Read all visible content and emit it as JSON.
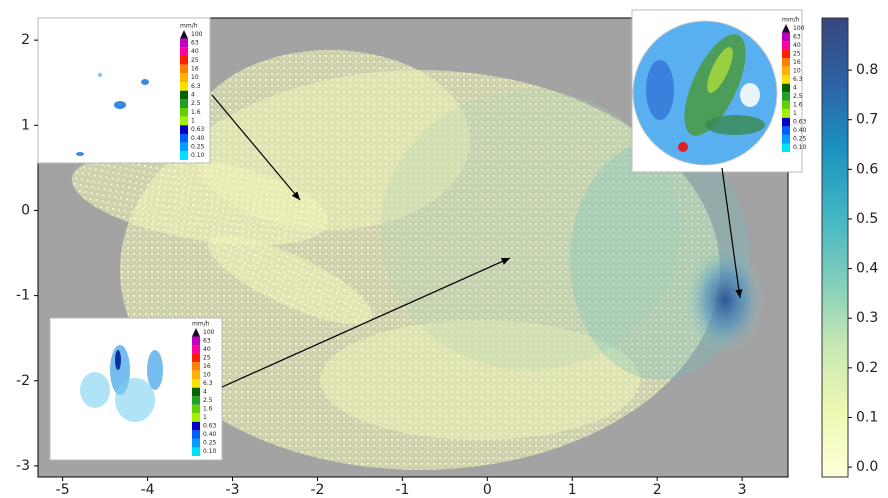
{
  "chart_data": {
    "type": "scatter",
    "xlim": [
      -5.29,
      3.54
    ],
    "ylim": [
      -3.13,
      2.26
    ],
    "xticks": [
      -5,
      -4,
      -3,
      -2,
      -1,
      0,
      1,
      2,
      3
    ],
    "yticks": [
      -3,
      -2,
      -1,
      0,
      1,
      2
    ],
    "background": "#a3a3a3",
    "colorbar": {
      "lim": [
        -0.02,
        0.905
      ],
      "ticks": [
        {
          "value": 0,
          "label": "0.0"
        },
        0.1,
        0.2,
        0.3,
        0.4,
        0.5,
        0.6,
        0.7,
        0.8
      ],
      "colors": [
        "#ffffd9",
        "#edf8b1",
        "#c7e9b4",
        "#7fcdbb",
        "#41b6c4",
        "#1d91c0",
        "#2c63a6",
        "#38467e"
      ]
    },
    "inset_legend": {
      "unit": "mm/h",
      "levels": [
        {
          "label": "100",
          "color": "#1a0a2a"
        },
        {
          "label": "63",
          "color": "#c000c0"
        },
        {
          "label": "40",
          "color": "#ff00a0"
        },
        {
          "label": "25",
          "color": "#ff2000"
        },
        {
          "label": "16",
          "color": "#ff8000"
        },
        {
          "label": "10",
          "color": "#ffb000"
        },
        {
          "label": "6.3",
          "color": "#ffe000"
        },
        {
          "label": "4",
          "color": "#006400"
        },
        {
          "label": "2.5",
          "color": "#20a020"
        },
        {
          "label": "1.6",
          "color": "#60d000"
        },
        {
          "label": "1",
          "color": "#a0f000"
        },
        {
          "label": "0.63",
          "color": "#0000c8"
        },
        {
          "label": "0.40",
          "color": "#0060ff"
        },
        {
          "label": "0.25",
          "color": "#00a0ff"
        },
        {
          "label": "0.10",
          "color": "#00e0ff"
        }
      ]
    }
  }
}
